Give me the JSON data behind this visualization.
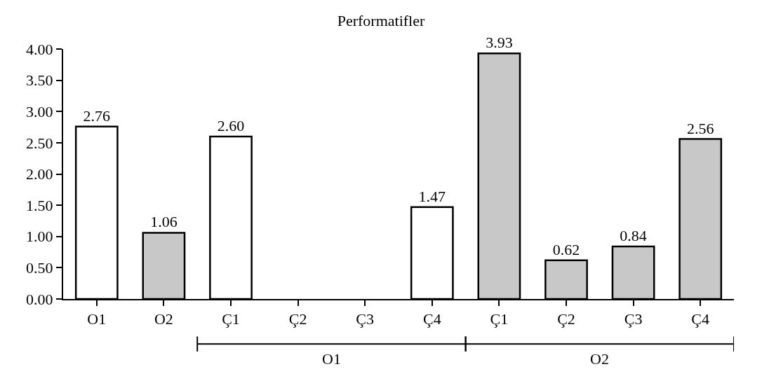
{
  "chart_data": {
    "type": "bar",
    "title": "Performatifler",
    "categories": [
      "O1",
      "O2",
      "Ç1",
      "Ç2",
      "Ç3",
      "Ç4",
      "Ç1",
      "Ç2",
      "Ç3",
      "Ç4"
    ],
    "values": [
      2.76,
      1.06,
      2.6,
      null,
      null,
      1.47,
      3.93,
      0.62,
      0.84,
      2.56
    ],
    "colors": [
      "#ffffff",
      "#c8c8c8",
      "#ffffff",
      "#ffffff",
      "#ffffff",
      "#ffffff",
      "#c8c8c8",
      "#c8c8c8",
      "#c8c8c8",
      "#c8c8c8"
    ],
    "value_labels": [
      "2.76",
      "1.06",
      "2.60",
      null,
      null,
      "1.47",
      "3.93",
      "0.62",
      "0.84",
      "2.56"
    ],
    "ylim": [
      0,
      4
    ],
    "yticks": [
      {
        "value": 0,
        "label": "0.00"
      },
      {
        "value": 0.5,
        "label": "0.50"
      },
      {
        "value": 1,
        "label": "1.00"
      },
      {
        "value": 1.5,
        "label": "1.50"
      },
      {
        "value": 2,
        "label": "2.00"
      },
      {
        "value": 2.5,
        "label": "2.50"
      },
      {
        "value": 3,
        "label": "3.00"
      },
      {
        "value": 3.5,
        "label": "3.50"
      },
      {
        "value": 4,
        "label": "4.00"
      }
    ],
    "annotations": [
      "O1",
      "O2"
    ],
    "grid": false
  }
}
